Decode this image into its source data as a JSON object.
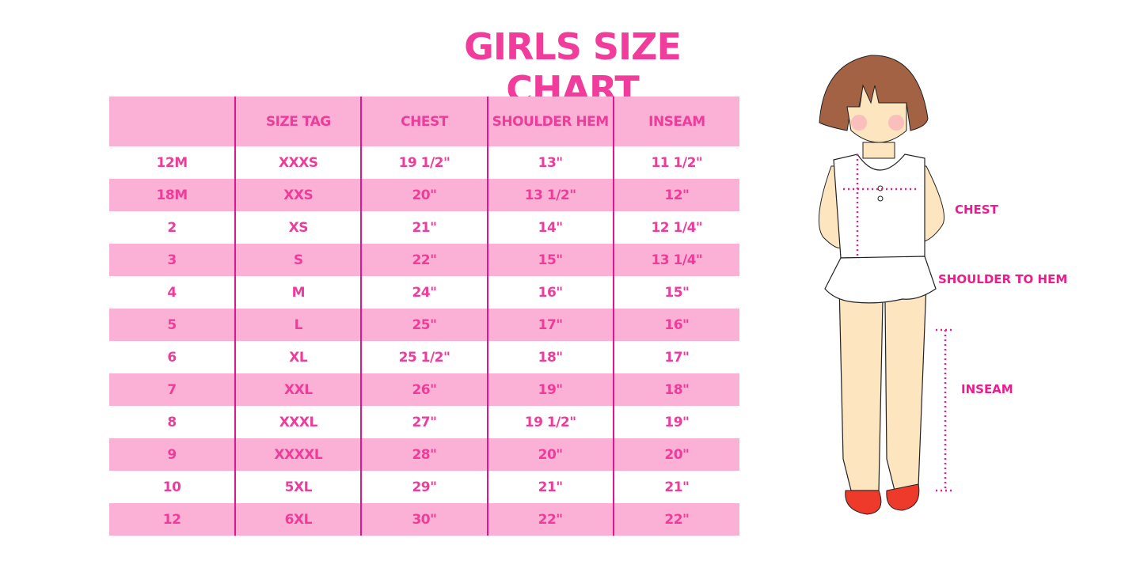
{
  "title": "GIRLS SIZE CHART",
  "table": {
    "headers": [
      "",
      "SIZE TAG",
      "CHEST",
      "SHOULDER HEM",
      "INSEAM"
    ],
    "rows": [
      [
        "12M",
        "XXXS",
        "19 1/2\"",
        "13\"",
        "11 1/2\""
      ],
      [
        "18M",
        "XXS",
        "20\"",
        "13 1/2\"",
        "12\""
      ],
      [
        "2",
        "XS",
        "21\"",
        "14\"",
        "12 1/4\""
      ],
      [
        "3",
        "S",
        "22\"",
        "15\"",
        "13 1/4\""
      ],
      [
        "4",
        "M",
        "24\"",
        "16\"",
        "15\""
      ],
      [
        "5",
        "L",
        "25\"",
        "17\"",
        "16\""
      ],
      [
        "6",
        "XL",
        "25 1/2\"",
        "18\"",
        "17\""
      ],
      [
        "7",
        "XXL",
        "26\"",
        "19\"",
        "18\""
      ],
      [
        "8",
        "XXXL",
        "27\"",
        "19 1/2\"",
        "19\""
      ],
      [
        "9",
        "XXXXL",
        "28\"",
        "20\"",
        "20\""
      ],
      [
        "10",
        "5XL",
        "29\"",
        "21\"",
        "21\""
      ],
      [
        "12",
        "6XL",
        "30\"",
        "22\"",
        "22\""
      ]
    ]
  },
  "figure": {
    "labels": {
      "chest": "CHEST",
      "shoulder_to_hem": "SHOULDER TO HEM",
      "inseam": "INSEAM"
    }
  },
  "colors": {
    "accent": "#ef3c9a",
    "row_fill": "#fbb1d5",
    "divider": "#e0168e"
  }
}
